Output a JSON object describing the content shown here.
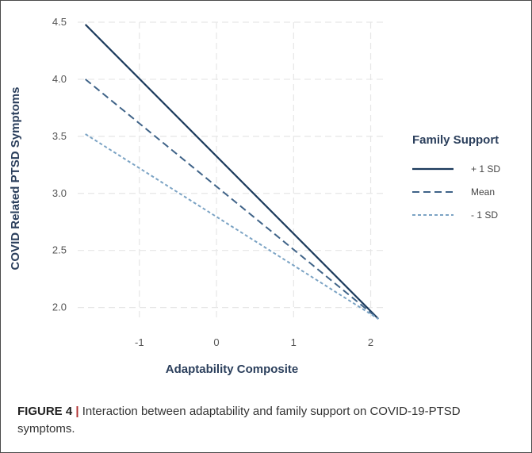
{
  "chart_data": {
    "type": "line",
    "xlabel": "Adaptability Composite",
    "ylabel": "COVID Related PTSD Symptoms",
    "xlim": [
      -1.8,
      2.2
    ],
    "ylim": [
      1.9,
      4.5
    ],
    "x_ticks": [
      -1,
      0,
      1,
      2
    ],
    "x_tick_labels": [
      "-1",
      "0",
      "1",
      "2"
    ],
    "y_ticks": [
      2.0,
      2.5,
      3.0,
      3.5,
      4.0,
      4.5
    ],
    "y_tick_labels": [
      "2.0",
      "2.5",
      "3.0",
      "3.5",
      "4.0",
      "4.5"
    ],
    "grid": true,
    "legend_title": "Family Support",
    "legend_position": "right",
    "series": [
      {
        "name": "+ 1 SD",
        "x": [
          -1.7,
          2.1
        ],
        "y": [
          4.48,
          1.9
        ],
        "style": "solid",
        "color": "#1b3a5c"
      },
      {
        "name": "Mean",
        "x": [
          -1.7,
          2.1
        ],
        "y": [
          4.0,
          1.9
        ],
        "style": "dashed",
        "color": "#3f6388"
      },
      {
        "name": "- 1 SD",
        "x": [
          -1.7,
          2.1
        ],
        "y": [
          3.52,
          1.9
        ],
        "style": "dotted",
        "color": "#7ba3c4"
      }
    ]
  },
  "caption": {
    "label": "FIGURE 4",
    "separator": "|",
    "text": " Interaction between adaptability and family support on COVID-19-PTSD symptoms."
  }
}
